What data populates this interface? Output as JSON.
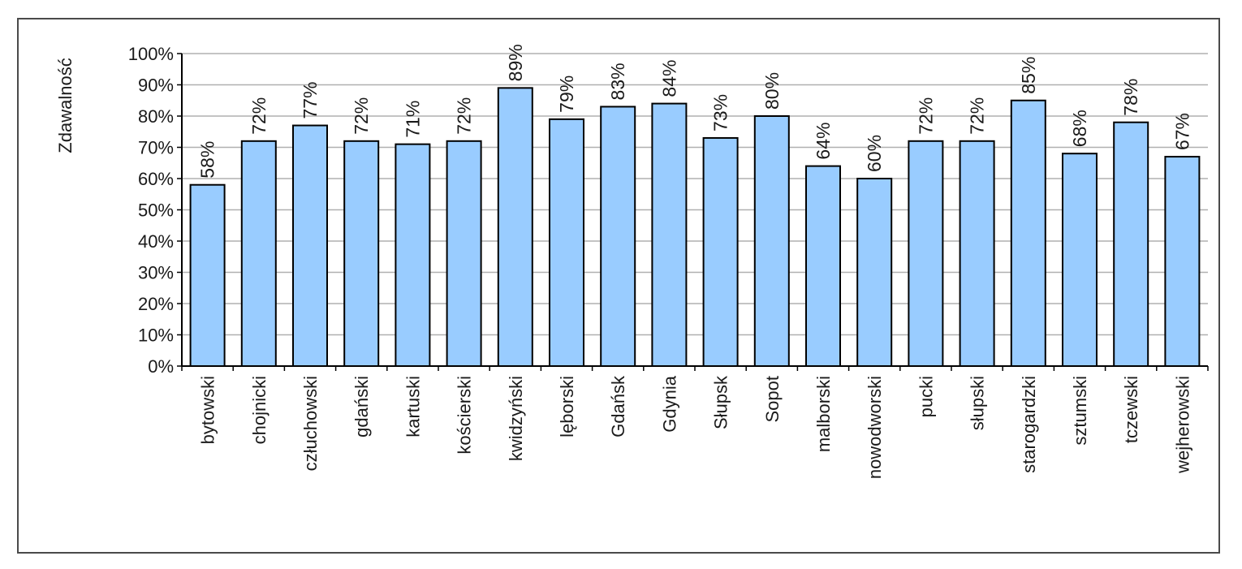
{
  "chart_data": {
    "type": "bar",
    "title": "",
    "xlabel": "",
    "ylabel": "Zdawalność",
    "ylim": [
      0,
      100
    ],
    "y_ticks": [
      0,
      10,
      20,
      30,
      40,
      50,
      60,
      70,
      80,
      90,
      100
    ],
    "y_tick_suffix": "%",
    "grid": "horizontal",
    "legend": "none",
    "bar_color": "#99ccff",
    "bar_edge_color": "#000000",
    "grid_color": "#b0b0b0",
    "categories": [
      "bytowski",
      "chojnicki",
      "człuchowski",
      "gdański",
      "kartuski",
      "kościerski",
      "kwidzyński",
      "lęborski",
      "Gdańsk",
      "Gdynia",
      "Słupsk",
      "Sopot",
      "malborski",
      "nowodworski",
      "pucki",
      "słupski",
      "starogardzki",
      "sztumski",
      "tczewski",
      "wejherowski"
    ],
    "values": [
      58,
      72,
      77,
      72,
      71,
      72,
      89,
      79,
      83,
      84,
      73,
      80,
      64,
      60,
      72,
      72,
      85,
      68,
      78,
      67
    ],
    "value_labels": [
      "58%",
      "72%",
      "77%",
      "72%",
      "71%",
      "72%",
      "89%",
      "79%",
      "83%",
      "84%",
      "73%",
      "80%",
      "64%",
      "60%",
      "72%",
      "72%",
      "85%",
      "68%",
      "78%",
      "67%"
    ]
  }
}
